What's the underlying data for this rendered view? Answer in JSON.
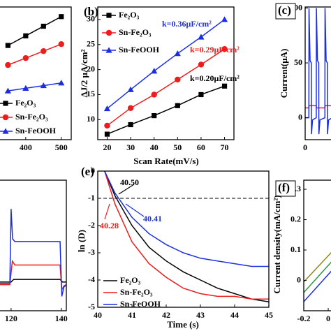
{
  "chart_data": [
    {
      "type": "line",
      "xlim": [
        308,
        528
      ],
      "ylim": [
        0,
        40
      ],
      "xticks": [
        400,
        500
      ],
      "legend": true,
      "series": [
        {
          "name": "Fe₂O₃",
          "color": "#000000",
          "marker": "square",
          "x": [
            350,
            400,
            450,
            500
          ],
          "values": [
            28.4,
            31.3,
            34.2,
            37.1
          ]
        },
        {
          "name": "Sn-Fe₂O₃",
          "color": "#ee1c1c",
          "marker": "circle",
          "x": [
            350,
            400,
            450,
            500
          ],
          "values": [
            22.5,
            24.6,
            26.7,
            28.8
          ]
        },
        {
          "name": "Sn-FeOOH",
          "color": "#1c2fe0",
          "marker": "triangle",
          "x": [
            350,
            400,
            450,
            500
          ],
          "values": [
            14.7,
            15.5,
            16.3,
            17.1
          ]
        }
      ]
    },
    {
      "type": "line",
      "title": "(b)",
      "xlabel": "Scan Rate(mV/s)",
      "ylabel": "ΔJ/2 μA/cm²",
      "xlim": [
        16,
        74
      ],
      "ylim": [
        6,
        32.5
      ],
      "xticks": [
        20,
        30,
        40,
        50,
        60,
        70
      ],
      "yticks": [
        10,
        15,
        20,
        25,
        30
      ],
      "legend": true,
      "series": [
        {
          "name": "Fe₂O₃",
          "color": "#000000",
          "marker": "square",
          "x": [
            20,
            30,
            40,
            50,
            60,
            70
          ],
          "values": [
            7.1,
            9.0,
            10.8,
            12.8,
            15.0,
            16.7
          ]
        },
        {
          "name": "Sn-Fe₂O₃",
          "color": "#ee1c1c",
          "marker": "circle",
          "x": [
            20,
            30,
            40,
            50,
            60,
            70
          ],
          "values": [
            8.8,
            12.3,
            15.0,
            18.0,
            21.0,
            24.1
          ]
        },
        {
          "name": "Sn-FeOOH",
          "color": "#1c2fe0",
          "marker": "triangle",
          "x": [
            20,
            30,
            40,
            50,
            60,
            70
          ],
          "values": [
            12.2,
            16.0,
            19.7,
            23.2,
            26.5,
            30.0
          ]
        }
      ],
      "annotations": [
        {
          "text": "k=0.36μF/cm²",
          "color": "#1c2fe0"
        },
        {
          "text": "k=0.29μF/cm²",
          "color": "#ee1c1c"
        },
        {
          "text": "k=0.20μF/cm²",
          "color": "#000000"
        }
      ]
    },
    {
      "type": "line",
      "title": "(c)",
      "ylabel": "Current(μA)",
      "xlim": [
        0,
        30
      ],
      "ylim": [
        -20,
        101
      ],
      "xticks": [
        0
      ],
      "yticks": [
        0,
        50,
        100
      ],
      "series": [
        {
          "color": "#ee1c1c",
          "x": [
            0,
            3,
            3.1,
            9,
            9.1,
            16,
            16.1,
            22
          ],
          "values": [
            9,
            9,
            11,
            11,
            9,
            9,
            11,
            11
          ]
        },
        {
          "color": "#1c2fe0",
          "x": [
            0,
            3,
            3.1,
            4,
            5,
            5.1,
            6,
            9,
            9.1,
            10,
            11,
            11.1,
            12,
            16,
            16.1,
            17,
            18,
            18.1,
            19,
            22
          ],
          "values": [
            0,
            0,
            100,
            52,
            50,
            -15,
            -2,
            0,
            100,
            52,
            50,
            -15,
            -2,
            0,
            100,
            52,
            50,
            -15,
            -2,
            0
          ]
        }
      ]
    },
    {
      "type": "line",
      "xlim": [
        112.8,
        142
      ],
      "ylim": [
        0,
        10
      ],
      "xticks": [
        120,
        140
      ],
      "series": [
        {
          "color": "#000000",
          "x": [
            112.8,
            120,
            121,
            139.5,
            140.5,
            142
          ],
          "values": [
            2.2,
            2.2,
            2.4,
            2.4,
            2.2,
            2.2
          ]
        },
        {
          "color": "#ee1c1c",
          "x": [
            112.8,
            119.5,
            120.5,
            121.5,
            139.5,
            140.2,
            141,
            142
          ],
          "values": [
            2.0,
            2.0,
            3.8,
            3.5,
            3.5,
            1.6,
            1.9,
            2.0
          ]
        },
        {
          "color": "#1c2fe0",
          "x": [
            112.8,
            119.5,
            120,
            120.6,
            121.5,
            139.5,
            140.2,
            141,
            142
          ],
          "values": [
            2.1,
            2.1,
            7.8,
            5.5,
            5.3,
            5.3,
            1.1,
            1.8,
            2.0
          ]
        }
      ]
    },
    {
      "type": "line",
      "title": "(e)",
      "xlabel": "Time (s)",
      "ylabel": "ln (D)",
      "xlim": [
        40,
        45
      ],
      "ylim": [
        -5,
        0
      ],
      "xticks": [
        40,
        41,
        42,
        43,
        44,
        45
      ],
      "yticks": [
        -5,
        -4,
        -3,
        -2,
        -1,
        0
      ],
      "hline": -1,
      "legend": true,
      "series": [
        {
          "name": "Fe₂O₃",
          "color": "#000000",
          "x": [
            40.2,
            40.5,
            41,
            41.5,
            42,
            42.5,
            43,
            43.5,
            44,
            44.5,
            45
          ],
          "values": [
            0,
            -0.9,
            -2.0,
            -2.8,
            -3.3,
            -3.7,
            -4.0,
            -4.3,
            -4.5,
            -4.7,
            -4.8
          ]
        },
        {
          "name": "Sn-Fe₂O₃",
          "color": "#ee1c1c",
          "x": [
            40.2,
            40.5,
            41,
            41.5,
            42,
            42.5,
            43,
            43.5,
            44,
            44.5,
            45
          ],
          "values": [
            0,
            -1.2,
            -2.6,
            -3.4,
            -3.9,
            -4.3,
            -4.5,
            -4.6,
            -4.6,
            -4.7,
            -4.7
          ]
        },
        {
          "name": "Sn-FeOOH",
          "color": "#1c2fe0",
          "x": [
            40.2,
            40.5,
            41,
            41.5,
            42,
            42.5,
            43,
            43.5,
            44,
            44.5,
            45
          ],
          "values": [
            0,
            -0.8,
            -1.7,
            -2.3,
            -2.7,
            -3.0,
            -3.2,
            -3.3,
            -3.4,
            -3.5,
            -3.5
          ]
        }
      ],
      "annotations": [
        {
          "text": "40.50",
          "color": "#000000"
        },
        {
          "text": "40.41",
          "color": "#1c2fe0"
        },
        {
          "text": "40.28",
          "color": "#ee1c1c"
        }
      ]
    },
    {
      "type": "line",
      "title": "(f)",
      "ylabel": "Current density(mA/cm²)",
      "xlim": [
        -0.2,
        0.114
      ],
      "ylim": [
        -0.1,
        0.33
      ],
      "xticks": [
        -0.2,
        0
      ],
      "yticks": [
        0,
        0.1,
        0.2,
        0.3
      ],
      "series": [
        {
          "color": "#8a8a1a",
          "x": [
            -0.2,
            0.114
          ],
          "values": [
            -0.005,
            0.13
          ]
        },
        {
          "color": "#2e9a3a",
          "x": [
            -0.2,
            0.114
          ],
          "values": [
            -0.04,
            0.1
          ]
        },
        {
          "color": "#1c2fe0",
          "x": [
            -0.2,
            0.114
          ],
          "values": [
            -0.07,
            0.07
          ]
        }
      ]
    }
  ]
}
